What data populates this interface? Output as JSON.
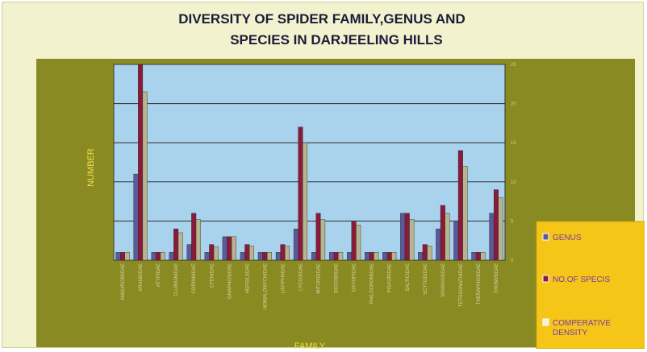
{
  "chart_data": {
    "type": "bar",
    "title_lines": [
      "DIVERSITY OF SPIDER FAMILY,GENUS AND",
      "SPECIES IN DARJEELING HILLS"
    ],
    "xlabel": "FAMILY",
    "ylabel": "NUMBER",
    "ylim": [
      0,
      25
    ],
    "yticks": [
      0,
      5,
      10,
      15,
      20,
      25
    ],
    "grid": true,
    "legend_position": "right",
    "categories": [
      "AMAUROBIIDAE",
      "ARANEIDAE",
      "ATYPIDAE",
      "CLUBIONIDAE",
      "CORINNIDAE",
      "CTENIDAE",
      "GNAPHOSIDAE",
      "HERSILIIDAE",
      "HOMALONYCHIDAE",
      "LINYPHIIDAE",
      "LYCOSIDAE",
      "MITURGIDAE",
      "OECOBIIDAE",
      "OXYOPIDAE",
      "PHILODROMIDAE",
      "PISAURIDAE",
      "SALTICIDAE",
      "SCYTODIDAE",
      "SPARASSIDAE",
      "TETRAGNATHIDAE",
      "THERAPHOSIDAE",
      "THOMISIDAE"
    ],
    "series": [
      {
        "name": "GENUS",
        "color": "#5a5a9a",
        "values": [
          1,
          11,
          1,
          1,
          2,
          1,
          3,
          1,
          1,
          1,
          4,
          1,
          1,
          1,
          1,
          1,
          6,
          1,
          4,
          5,
          1,
          6
        ]
      },
      {
        "name": "NO.OF SPECIS",
        "color": "#8a1a3a",
        "values": [
          1,
          25,
          1,
          4,
          6,
          2,
          3,
          2,
          1,
          2,
          17,
          6,
          1,
          5,
          1,
          1,
          6,
          2,
          7,
          14,
          1,
          9
        ]
      },
      {
        "name": "COMPERATIVE DENSITY",
        "color": "#b8b48c",
        "values": [
          1,
          21.5,
          1,
          3.5,
          5.2,
          1.7,
          3,
          1.8,
          1,
          1.8,
          15,
          5.2,
          1,
          4.5,
          1,
          1,
          5.2,
          1.8,
          6,
          12,
          1,
          8
        ]
      }
    ]
  },
  "colors": {
    "frame_bg": "#f2f2cf",
    "outer_bg": "#8a8a22",
    "plot_bg": "#a9d2ec",
    "legend_bg": "#f5c518",
    "title_color": "#1b1b3a",
    "axis_label_color": "#f2e04a"
  }
}
